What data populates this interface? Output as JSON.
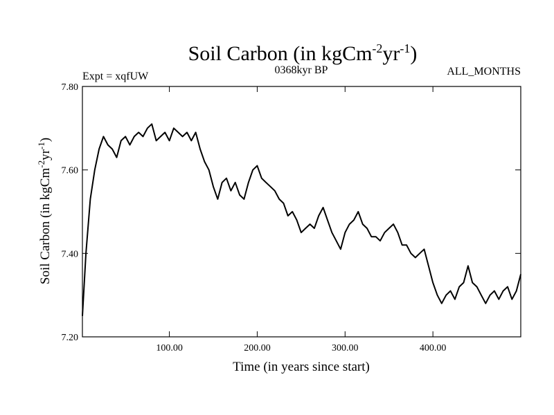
{
  "chart_data": {
    "type": "line",
    "title": "Soil Carbon (in kgCm",
    "title_sup1": "-2",
    "title_mid": "yr",
    "title_sup2": "-1",
    "title_end": ")",
    "ylabel": "Soil Carbon (in kgCm",
    "ylabel_sup1": "-2",
    "ylabel_mid": "yr",
    "ylabel_sup2": "-1",
    "ylabel_end": ")",
    "xlabel": "Time (in years since start)",
    "subtitle_left": "Expt = xqfUW",
    "subtitle_center": "0368kyr BP",
    "subtitle_right": "ALL_MONTHS",
    "xlim": [
      1,
      500
    ],
    "ylim": [
      7.2,
      7.8
    ],
    "x_ticks": [
      100,
      200,
      300,
      400
    ],
    "x_tick_labels": [
      "100.00",
      "200.00",
      "300.00",
      "400.00"
    ],
    "y_ticks": [
      7.2,
      7.4,
      7.6,
      7.8
    ],
    "y_tick_labels": [
      "7.20",
      "7.40",
      "7.60",
      "7.80"
    ],
    "series": [
      {
        "name": "Soil Carbon",
        "color": "#000000",
        "x": [
          1,
          5,
          10,
          15,
          20,
          25,
          30,
          35,
          40,
          45,
          50,
          55,
          60,
          65,
          70,
          75,
          80,
          85,
          90,
          95,
          100,
          105,
          110,
          115,
          120,
          125,
          130,
          135,
          140,
          145,
          150,
          155,
          160,
          165,
          170,
          175,
          180,
          185,
          190,
          195,
          200,
          205,
          210,
          215,
          220,
          225,
          230,
          235,
          240,
          245,
          250,
          255,
          260,
          265,
          270,
          275,
          280,
          285,
          290,
          295,
          300,
          305,
          310,
          315,
          320,
          325,
          330,
          335,
          340,
          345,
          350,
          355,
          360,
          365,
          370,
          375,
          380,
          385,
          390,
          395,
          400,
          405,
          410,
          415,
          420,
          425,
          430,
          435,
          440,
          445,
          450,
          455,
          460,
          465,
          470,
          475,
          480,
          485,
          490,
          495,
          500
        ],
        "values": [
          7.25,
          7.4,
          7.53,
          7.6,
          7.65,
          7.68,
          7.66,
          7.65,
          7.63,
          7.67,
          7.68,
          7.66,
          7.68,
          7.69,
          7.68,
          7.7,
          7.71,
          7.67,
          7.68,
          7.69,
          7.67,
          7.7,
          7.69,
          7.68,
          7.69,
          7.67,
          7.69,
          7.65,
          7.62,
          7.6,
          7.56,
          7.53,
          7.57,
          7.58,
          7.55,
          7.57,
          7.54,
          7.53,
          7.57,
          7.6,
          7.61,
          7.58,
          7.57,
          7.56,
          7.55,
          7.53,
          7.52,
          7.49,
          7.5,
          7.48,
          7.45,
          7.46,
          7.47,
          7.46,
          7.49,
          7.51,
          7.48,
          7.45,
          7.43,
          7.41,
          7.45,
          7.47,
          7.48,
          7.5,
          7.47,
          7.46,
          7.44,
          7.44,
          7.43,
          7.45,
          7.46,
          7.47,
          7.45,
          7.42,
          7.42,
          7.4,
          7.39,
          7.4,
          7.41,
          7.37,
          7.33,
          7.3,
          7.28,
          7.3,
          7.31,
          7.29,
          7.32,
          7.33,
          7.37,
          7.33,
          7.32,
          7.3,
          7.28,
          7.3,
          7.31,
          7.29,
          7.31,
          7.32,
          7.29,
          7.31,
          7.35
        ]
      }
    ]
  }
}
